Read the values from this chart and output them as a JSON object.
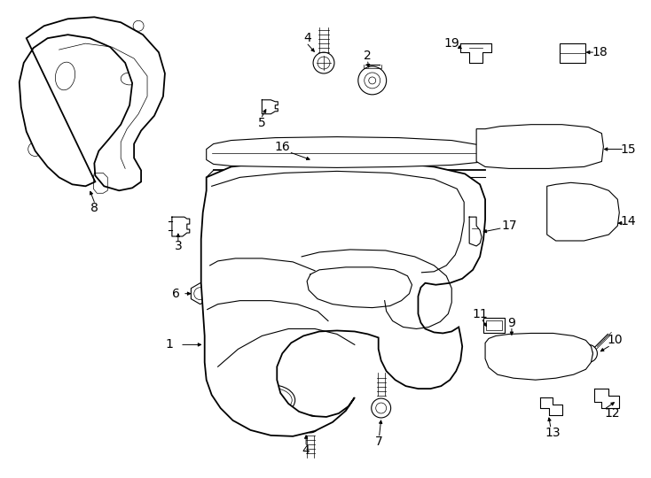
{
  "bg_color": "#ffffff",
  "line_color": "#000000",
  "lw_main": 1.3,
  "lw_thin": 0.8,
  "lw_extra": 0.5,
  "figsize": [
    7.34,
    5.4
  ],
  "dpi": 100
}
